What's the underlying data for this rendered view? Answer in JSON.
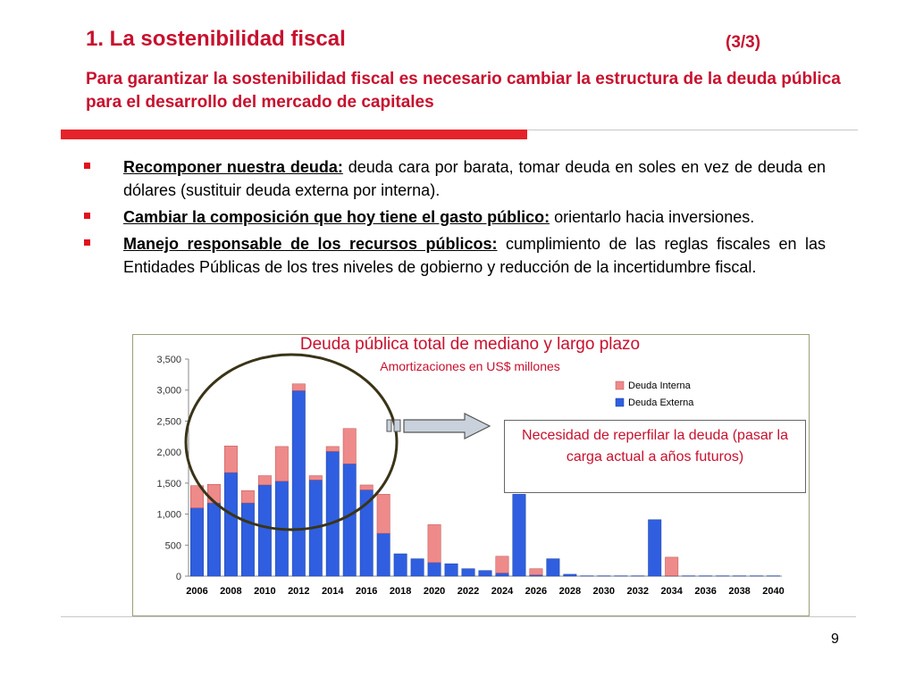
{
  "slide": {
    "title": "1. La sostenibilidad fiscal",
    "pager": "(3/3)",
    "subtitle": "Para garantizar la sostenibilidad fiscal es necesario cambiar la estructura de  la deuda pública para el desarrollo del mercado de capitales",
    "page_number": "9"
  },
  "bullets": [
    {
      "term": "Recomponer nuestra deuda:",
      "text": " deuda cara por barata, tomar deuda en soles en vez de deuda en dólares (sustituir deuda externa por interna)."
    },
    {
      "term": "Cambiar la composición que hoy tiene el gasto público:",
      "text": " orientarlo hacia inversiones."
    },
    {
      "term": "Manejo responsable de los recursos públicos:",
      "text": " cumplimiento de las reglas fiscales en las Entidades Públicas de los tres niveles de gobierno y reducción de la incertidumbre fiscal."
    }
  ],
  "callout": {
    "text": "Necesidad de reperfilar la deuda (pasar la carga actual a años futuros)"
  },
  "colors": {
    "accent": "#c8102e",
    "bullet": "#e0141e",
    "externa": "#2f5fe0",
    "interna": "#ee8a8a",
    "ellipse": "#3a3418"
  },
  "chart_data": {
    "type": "bar",
    "stacked": true,
    "title": "Deuda pública total de mediano y largo plazo",
    "subtitle": "Amortizaciones en US$ millones",
    "xlabel": "",
    "ylabel": "",
    "ylim": [
      0,
      3500
    ],
    "yticks": [
      0,
      500,
      1000,
      1500,
      2000,
      2500,
      3000,
      3500
    ],
    "ytick_labels": [
      "0",
      "500",
      "1,000",
      "1,500",
      "2,000",
      "2,500",
      "3,000",
      "3,500"
    ],
    "categories": [
      2006,
      2007,
      2008,
      2009,
      2010,
      2011,
      2012,
      2013,
      2014,
      2015,
      2016,
      2017,
      2018,
      2019,
      2020,
      2021,
      2022,
      2023,
      2024,
      2025,
      2026,
      2027,
      2028,
      2029,
      2030,
      2031,
      2032,
      2033,
      2034,
      2035,
      2036,
      2037,
      2038,
      2039,
      2040
    ],
    "xtick_labels": [
      "2006",
      "2008",
      "2010",
      "2012",
      "2014",
      "2016",
      "2018",
      "2020",
      "2022",
      "2024",
      "2026",
      "2028",
      "2030",
      "2032",
      "2034",
      "2036",
      "2038",
      "2040"
    ],
    "legend_position": "top-right",
    "grid": false,
    "series": [
      {
        "name": "Deuda Externa",
        "values": [
          1100,
          1180,
          1670,
          1180,
          1470,
          1530,
          2990,
          1550,
          2010,
          1810,
          1390,
          690,
          360,
          280,
          220,
          200,
          120,
          90,
          50,
          1320,
          20,
          280,
          30,
          5,
          5,
          5,
          5,
          910,
          5,
          5,
          5,
          5,
          5,
          5,
          5
        ]
      },
      {
        "name": "Deuda Interna",
        "values": [
          360,
          300,
          430,
          200,
          150,
          560,
          110,
          70,
          80,
          570,
          80,
          630,
          0,
          0,
          610,
          0,
          0,
          0,
          270,
          0,
          100,
          0,
          0,
          0,
          0,
          0,
          0,
          0,
          300,
          0,
          0,
          0,
          0,
          0,
          0
        ]
      }
    ]
  }
}
